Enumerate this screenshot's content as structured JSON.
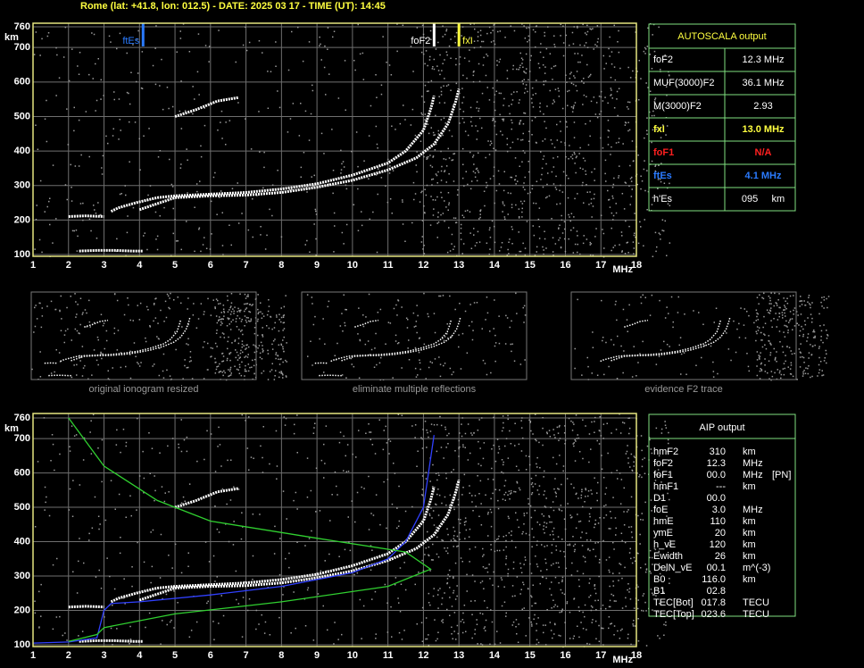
{
  "header": "Rome (lat: +41.8, lon: 012.5) - DATE: 2025 03 17 - TIME (UT): 14:45",
  "plots": [
    {
      "xlim": [
        1,
        18
      ],
      "ylim": [
        100,
        760
      ],
      "xticks": [
        1,
        2,
        3,
        4,
        5,
        6,
        7,
        8,
        9,
        10,
        11,
        12,
        13,
        14,
        15,
        16,
        17,
        18
      ],
      "yticks": [
        100,
        200,
        300,
        400,
        500,
        600,
        700,
        760
      ],
      "x_unit": "MHz",
      "y_unit": "km",
      "markers": [
        {
          "name": "ftEs",
          "value": 4.1,
          "color": "#2a7bff"
        },
        {
          "name": "foF2",
          "value": 12.3,
          "color": "#ffffff"
        },
        {
          "name": "fxI",
          "value": 13.0,
          "color": "#ffff40"
        }
      ],
      "series": [
        {
          "color": "#ffffff",
          "x": [
            2.3,
            2.8,
            3.3,
            3.8,
            4.1
          ],
          "y": [
            110,
            112,
            112,
            110,
            110
          ]
        },
        {
          "color": "#ffffff",
          "x": [
            2.0,
            2.5,
            3.0
          ],
          "y": [
            210,
            212,
            210
          ]
        },
        {
          "color": "#ffffff",
          "x": [
            3.2,
            3.4,
            3.9,
            4.5,
            5,
            6,
            7,
            8,
            9,
            10,
            11,
            11.5,
            12,
            12.2,
            12.3
          ],
          "y": [
            225,
            235,
            250,
            265,
            270,
            275,
            280,
            290,
            305,
            330,
            365,
            400,
            460,
            520,
            560
          ]
        },
        {
          "color": "#ffffff",
          "x": [
            4,
            5,
            6,
            7,
            8,
            9,
            10,
            11,
            11.8,
            12.3,
            12.7,
            12.9,
            13
          ],
          "y": [
            230,
            265,
            270,
            272,
            280,
            295,
            315,
            345,
            380,
            420,
            480,
            540,
            580
          ]
        },
        {
          "color": "#ffffff",
          "x": [
            5,
            5.6,
            6.2,
            6.8
          ],
          "y": [
            500,
            520,
            545,
            555
          ]
        }
      ]
    },
    {
      "xlim": [
        1,
        18
      ],
      "ylim": [
        100,
        760
      ],
      "xticks": [
        1,
        2,
        3,
        4,
        5,
        6,
        7,
        8,
        9,
        10,
        11,
        12,
        13,
        14,
        15,
        16,
        17,
        18
      ],
      "yticks": [
        100,
        200,
        300,
        400,
        500,
        600,
        700,
        760
      ],
      "x_unit": "MHz",
      "y_unit": "km",
      "series": [
        {
          "color": "#ffffff",
          "x": [
            2.3,
            2.8,
            3.3,
            3.8,
            4.1
          ],
          "y": [
            110,
            112,
            112,
            110,
            110
          ]
        },
        {
          "color": "#ffffff",
          "x": [
            2.0,
            2.5,
            3.0
          ],
          "y": [
            210,
            212,
            210
          ]
        },
        {
          "color": "#ffffff",
          "x": [
            3.2,
            3.4,
            3.9,
            4.5,
            5,
            6,
            7,
            8,
            9,
            10,
            11,
            11.5,
            12,
            12.2,
            12.3
          ],
          "y": [
            225,
            235,
            250,
            265,
            270,
            275,
            280,
            290,
            305,
            330,
            365,
            400,
            460,
            520,
            560
          ]
        },
        {
          "color": "#ffffff",
          "x": [
            4,
            5,
            6,
            7,
            8,
            9,
            10,
            11,
            11.8,
            12.3,
            12.7,
            12.9,
            13
          ],
          "y": [
            230,
            265,
            270,
            272,
            280,
            295,
            315,
            345,
            380,
            420,
            480,
            540,
            580
          ]
        },
        {
          "color": "#ffffff",
          "x": [
            5,
            5.6,
            6.2,
            6.8
          ],
          "y": [
            500,
            520,
            545,
            555
          ]
        },
        {
          "color": "#3040ff",
          "x": [
            1,
            2,
            2.8,
            3,
            3.2,
            4,
            6,
            8,
            10,
            11,
            11.5,
            12,
            12.3
          ],
          "y": [
            105,
            108,
            120,
            200,
            220,
            225,
            245,
            270,
            310,
            350,
            400,
            500,
            710
          ]
        },
        {
          "color": "#30d030",
          "x": [
            2,
            3,
            4.5,
            6,
            9,
            11.5,
            12.2,
            11,
            8,
            5,
            3,
            2.8,
            2
          ],
          "y": [
            760,
            620,
            520,
            460,
            410,
            370,
            320,
            270,
            225,
            190,
            150,
            130,
            110
          ]
        }
      ]
    }
  ],
  "autoscala": {
    "title": "AUTOSCALA output",
    "rows": [
      {
        "label": "foF2",
        "value": "12.3 MHz",
        "color": "#ffffff"
      },
      {
        "label": "MUF(3000)F2",
        "value": "36.1 MHz",
        "color": "#ffffff"
      },
      {
        "label": "M(3000)F2",
        "value": "2.93",
        "color": "#ffffff"
      },
      {
        "label": "fxI",
        "value": "13.0 MHz",
        "color": "#ffff40"
      },
      {
        "label": "foF1",
        "value": "N/A",
        "color": "#ff2020"
      },
      {
        "label": "ftEs",
        "value": "4.1 MHz",
        "color": "#2a7bff"
      },
      {
        "label": "h'Es",
        "value": "095     km",
        "color": "#ffffff"
      }
    ]
  },
  "thumbnails": [
    "original ionogram resized",
    "eliminate multiple reflections",
    "evidence F2 trace"
  ],
  "aip": {
    "title": "AIP output",
    "rows": [
      [
        "hmF2",
        "310",
        "km"
      ],
      [
        "foF2",
        "12.3",
        "MHz"
      ],
      [
        "foF1",
        "00.0",
        "MHz",
        "[PN]"
      ],
      [
        "hmF1",
        "---",
        "km"
      ],
      [
        "D1",
        "00.0"
      ],
      [
        "foE",
        "3.0",
        "MHz"
      ],
      [
        "hmE",
        "110",
        "km"
      ],
      [
        "ymE",
        "20",
        "km"
      ],
      [
        "h_vE",
        "120",
        "km"
      ],
      [
        "Ewidth",
        "26",
        "km"
      ],
      [
        "DelN_vE",
        "00.1",
        "m^(-3)"
      ],
      [
        "B0",
        "116.0",
        "km"
      ],
      [
        "B1",
        "02.8"
      ],
      [
        "TEC[Bot]",
        "017.8",
        "TECU"
      ],
      [
        "TEC[Top]",
        "023.6",
        "TECU"
      ]
    ]
  }
}
